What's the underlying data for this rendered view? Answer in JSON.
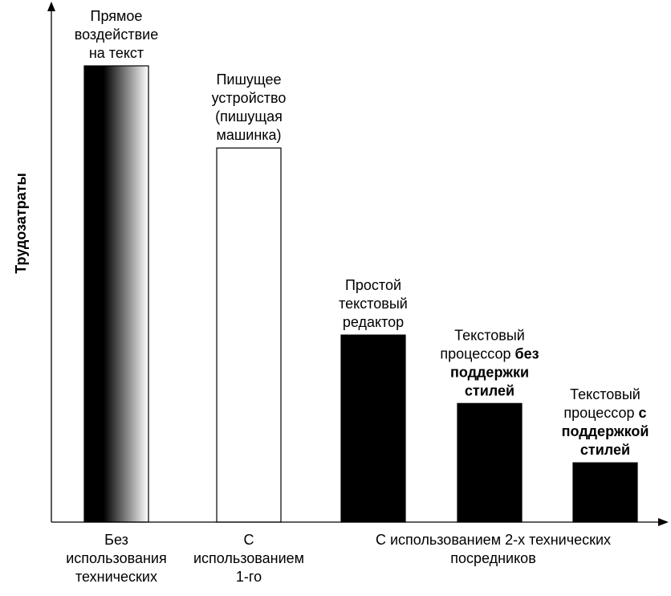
{
  "chart_data": {
    "type": "bar",
    "ylabel": "Трудозатраты",
    "ylim": [
      0,
      100
    ],
    "series": [
      {
        "values": [
          100,
          82,
          41,
          26,
          13
        ],
        "labels": [
          [
            "Прямое",
            "воздействие",
            "на текст"
          ],
          [
            "Пишущее",
            "устройство",
            "(пишущая",
            "машинка)"
          ],
          [
            "Простой",
            "текстовый",
            "редактор"
          ],
          [
            "Текстовый",
            "процессор |без|",
            "|поддержки|",
            "|стилей|"
          ],
          [
            "Текстовый",
            "процессор |с|",
            "|поддержкой|",
            "|стилей|"
          ]
        ]
      }
    ],
    "x_groups": [
      {
        "label": [
          "Без",
          "использования",
          "технических"
        ],
        "bars": [
          0
        ]
      },
      {
        "label": [
          "С",
          "использованием",
          "1-го"
        ],
        "bars": [
          1
        ]
      },
      {
        "label": [
          "С использованием 2-х технических",
          "посредников"
        ],
        "bars": [
          2,
          3,
          4
        ]
      }
    ],
    "colors": {
      "gradient_dark": "#000000",
      "gradient_light": "#ffffff",
      "white_bar": "#ffffff",
      "black_bar": "#000000",
      "stroke": "#000000"
    },
    "fills": [
      "gradient",
      "white",
      "black",
      "black",
      "black"
    ]
  }
}
